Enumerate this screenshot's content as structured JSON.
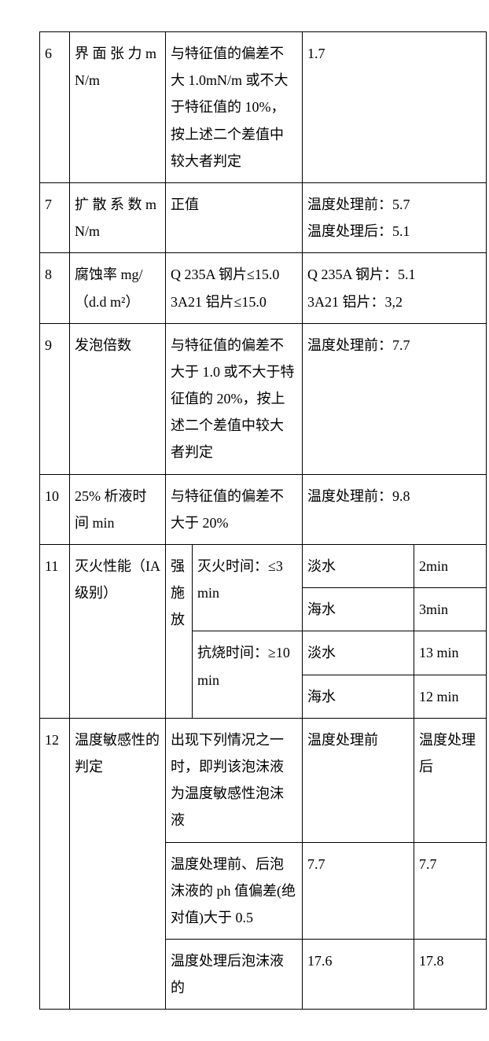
{
  "rows": {
    "r6": {
      "n": "6",
      "name": "界 面 张 力 mN/m",
      "spec": "与特征值的偏差不大 1.0mN/m 或不大于特征值的 10%，按上述二个差值中较大者判定",
      "val": "1.7"
    },
    "r7": {
      "n": "7",
      "name": "扩 散 系 数 mN/m",
      "spec": "正值",
      "val": "温度处理前：5.7\n温度处理后：5.1"
    },
    "r8": {
      "n": "8",
      "name": "腐蚀率 mg/（d.d m²）",
      "spec": "Q 235A 钢片≤15.0\n3A21 铝片≤15.0",
      "val": "Q 235A 钢片：5.1\n3A21 铝片：3,2"
    },
    "r9": {
      "n": "9",
      "name": "发泡倍数",
      "spec": "与特征值的偏差不大于 1.0 或不大于特征值的 20%，按上述二个差值中较大者判定",
      "val": "温度处理前：7.7"
    },
    "r10": {
      "n": "10",
      "name": "25% 析液时间 min",
      "spec": "与特征值的偏差不大于 20%",
      "val": "温度处理前：9.8"
    },
    "r11": {
      "n": "11",
      "name": "灭火性能（IA 级别）",
      "mode": "强施放",
      "spec1": "灭火时间：≤3 min",
      "spec2": "抗烧时间：≥10 min",
      "fresh": "淡水",
      "sea": "海水",
      "v1": "2min",
      "v2": "3min",
      "v3": "13 min",
      "v4": "12 min"
    },
    "r12": {
      "n": "12",
      "name": "温度敏感性的判定",
      "spec1": "出现下列情况之一时，即判该泡沫液为温度敏感性泡沫液",
      "spec2": "温度处理前、后泡沫液的 ph 值偏差(绝对值)大于 0.5",
      "spec3": "温度处理后泡沫液的",
      "h1": "温度处理前",
      "h2": "温度处理后",
      "v2a": "7.7",
      "v2b": "7.7",
      "v3a": "17.6",
      "v3b": "17.8"
    }
  }
}
